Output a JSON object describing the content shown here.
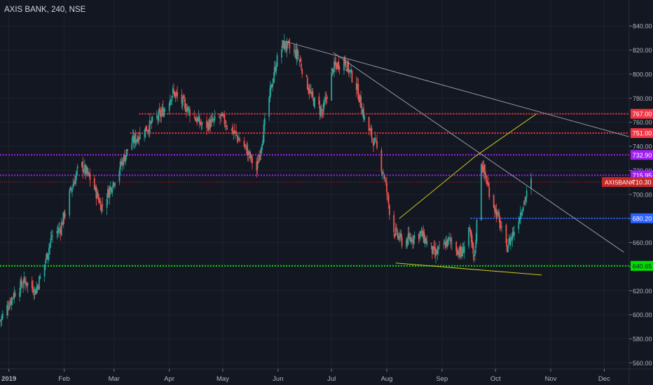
{
  "header": {
    "title": "AXIS BANK, 240, NSE"
  },
  "chart_data": {
    "type": "candlestick",
    "symbol": "AXISBANK",
    "interval": "240",
    "exchange": "NSE",
    "ylim": [
      555,
      850
    ],
    "yticks": [
      560,
      580,
      600,
      620,
      640,
      660,
      680,
      700,
      720,
      740,
      760,
      780,
      800,
      820,
      840
    ],
    "xlim": [
      "2018-12-27",
      "2019-12-15"
    ],
    "xticks": [
      {
        "date": "2019-01-01",
        "label": "2019"
      },
      {
        "date": "2019-02-01",
        "label": "Feb"
      },
      {
        "date": "2019-03-01",
        "label": "Mar"
      },
      {
        "date": "2019-04-01",
        "label": "Apr"
      },
      {
        "date": "2019-05-01",
        "label": "May"
      },
      {
        "date": "2019-06-01",
        "label": "Jun"
      },
      {
        "date": "2019-07-01",
        "label": "Jul"
      },
      {
        "date": "2019-08-01",
        "label": "Aug"
      },
      {
        "date": "2019-09-01",
        "label": "Sep"
      },
      {
        "date": "2019-10-01",
        "label": "Oct"
      },
      {
        "date": "2019-11-01",
        "label": "Nov"
      },
      {
        "date": "2019-12-01",
        "label": "Dec"
      }
    ],
    "close_path": [
      [
        "2018-12-27",
        595
      ],
      [
        "2019-01-04",
        618
      ],
      [
        "2019-01-10",
        628
      ],
      [
        "2019-01-16",
        620
      ],
      [
        "2019-01-21",
        642
      ],
      [
        "2019-01-25",
        665
      ],
      [
        "2019-01-30",
        672
      ],
      [
        "2019-02-04",
        700
      ],
      [
        "2019-02-10",
        726
      ],
      [
        "2019-02-16",
        712
      ],
      [
        "2019-02-22",
        690
      ],
      [
        "2019-03-02",
        715
      ],
      [
        "2019-03-10",
        742
      ],
      [
        "2019-03-20",
        756
      ],
      [
        "2019-03-28",
        768
      ],
      [
        "2019-04-03",
        785
      ],
      [
        "2019-04-12",
        770
      ],
      [
        "2019-04-20",
        756
      ],
      [
        "2019-04-30",
        764
      ],
      [
        "2019-05-08",
        750
      ],
      [
        "2019-05-14",
        738
      ],
      [
        "2019-05-20",
        720
      ],
      [
        "2019-05-27",
        780
      ],
      [
        "2019-05-31",
        810
      ],
      [
        "2019-06-04",
        825
      ],
      [
        "2019-06-12",
        816
      ],
      [
        "2019-06-20",
        780
      ],
      [
        "2019-06-26",
        768
      ],
      [
        "2019-07-02",
        805
      ],
      [
        "2019-07-08",
        812
      ],
      [
        "2019-07-15",
        790
      ],
      [
        "2019-07-20",
        760
      ],
      [
        "2019-07-26",
        740
      ],
      [
        "2019-07-31",
        712
      ],
      [
        "2019-08-04",
        672
      ],
      [
        "2019-08-10",
        660
      ],
      [
        "2019-08-20",
        668
      ],
      [
        "2019-08-28",
        650
      ],
      [
        "2019-09-05",
        662
      ],
      [
        "2019-09-12",
        650
      ],
      [
        "2019-09-16",
        672
      ],
      [
        "2019-09-19",
        645
      ],
      [
        "2019-09-23",
        728
      ],
      [
        "2019-09-27",
        705
      ],
      [
        "2019-10-03",
        678
      ],
      [
        "2019-10-07",
        655
      ],
      [
        "2019-10-12",
        672
      ],
      [
        "2019-10-16",
        690
      ],
      [
        "2019-10-21",
        710.3
      ]
    ],
    "horizontal_levels": [
      {
        "value": 767.0,
        "label": "767.00",
        "color": "#f23645",
        "from": "2019-03-15"
      },
      {
        "value": 751.0,
        "label": "751.00",
        "color": "#f23645",
        "from": "2019-03-10"
      },
      {
        "value": 732.9,
        "label": "732.90",
        "color": "#a020f0",
        "from": "2018-12-27"
      },
      {
        "value": 715.95,
        "label": "715.95",
        "color": "#a020f0",
        "from": "2018-12-27"
      },
      {
        "value": 680.2,
        "label": "680.20",
        "color": "#2962ff",
        "from": "2019-09-17"
      },
      {
        "value": 640.65,
        "label": "640.65",
        "color": "#00e000",
        "from": "2018-12-27"
      }
    ],
    "last_price": {
      "value": 710.3,
      "label": "710.30",
      "symbol": "AXISBANK",
      "color": "#c62828"
    },
    "trendlines": [
      {
        "color": "#9598a1",
        "points": [
          [
            "2019-06-03",
            828
          ],
          [
            "2019-12-15",
            748
          ]
        ]
      },
      {
        "color": "#9598a1",
        "points": [
          [
            "2019-07-02",
            818
          ],
          [
            "2019-12-12",
            652
          ]
        ]
      },
      {
        "color": "#c8c81e",
        "points": [
          [
            "2019-08-08",
            680
          ],
          [
            "2019-09-20",
            732
          ],
          [
            "2019-10-24",
            767
          ]
        ]
      },
      {
        "color": "#c8c81e",
        "points": [
          [
            "2019-08-06",
            643
          ],
          [
            "2019-10-27",
            633
          ]
        ]
      }
    ],
    "colors": {
      "up": "#26a69a",
      "down": "#ef5350",
      "background": "#131722",
      "axis_text": "#b2b5be"
    }
  }
}
